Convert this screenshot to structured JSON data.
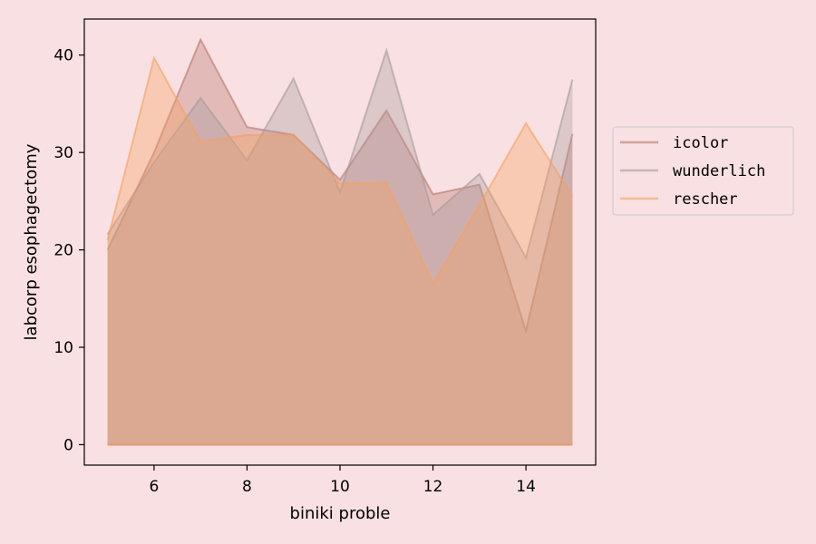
{
  "chart_data": {
    "type": "area",
    "title": "",
    "xlabel": "biniki proble",
    "ylabel": "labcorp esophagectomy",
    "x": [
      5,
      6,
      7,
      8,
      9,
      10,
      11,
      12,
      13,
      14,
      15
    ],
    "xlim": [
      4.5,
      15.5
    ],
    "ylim": [
      -2.1,
      43.7
    ],
    "xticks": [
      6,
      8,
      10,
      12,
      14
    ],
    "yticks": [
      0,
      10,
      20,
      30,
      40
    ],
    "grid": false,
    "legend_position": "right",
    "series": [
      {
        "name": "icolor",
        "values": [
          20.0,
          30.0,
          41.6,
          32.6,
          31.8,
          27.2,
          34.3,
          25.7,
          26.7,
          11.7,
          31.9
        ],
        "color": "#b8756e"
      },
      {
        "name": "wunderlich",
        "values": [
          21.6,
          29.0,
          35.6,
          29.2,
          37.6,
          25.9,
          40.5,
          23.6,
          27.8,
          19.2,
          37.5
        ],
        "color": "#a7999a"
      },
      {
        "name": "rescher",
        "values": [
          21.0,
          39.7,
          31.1,
          31.8,
          31.8,
          26.8,
          26.9,
          16.5,
          24.6,
          33.0,
          25.5
        ],
        "color": "#f5a05c"
      }
    ]
  }
}
